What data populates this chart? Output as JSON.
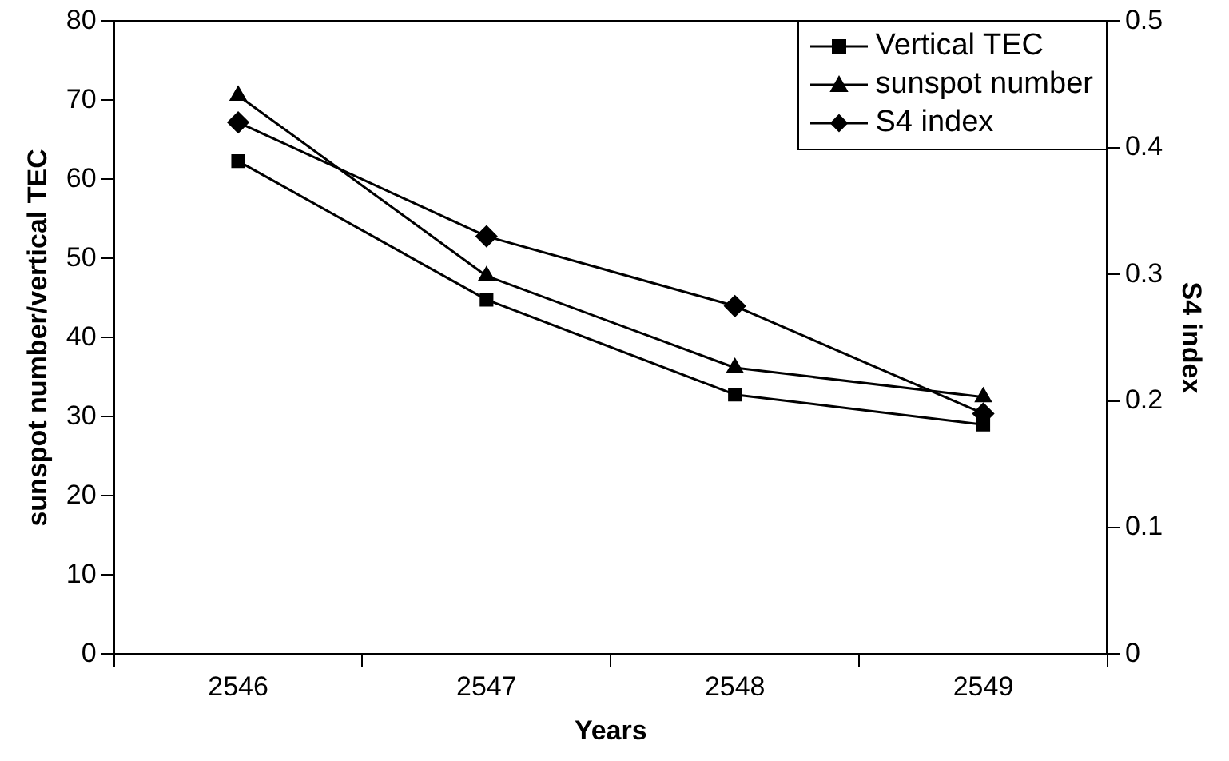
{
  "chart_data": {
    "type": "line",
    "xlabel": "Years",
    "ylabel": "sunspot number/vertical TEC",
    "y2label": "S4 index",
    "categories": [
      "2546",
      "2547",
      "2548",
      "2549"
    ],
    "series": [
      {
        "name": "Vertical TEC",
        "color": "#000000",
        "marker": "square",
        "values": [
          62.3,
          44.8,
          32.8,
          29
        ]
      },
      {
        "name": "sunspot number",
        "color": "#000000",
        "marker": "triangle",
        "values": [
          70.6,
          47.8,
          36.2,
          32.5
        ]
      },
      {
        "name": "S4 index",
        "color": "#000000",
        "marker": "diamond",
        "axis": "y2",
        "values": [
          0.42,
          0.33,
          0.275,
          0.19
        ]
      }
    ],
    "ylim": [
      0,
      80
    ],
    "yticks": [
      0,
      10,
      20,
      30,
      40,
      50,
      60,
      70,
      80
    ],
    "y2lim": [
      0,
      0.5
    ],
    "y2ticks": [
      0,
      0.1,
      0.2,
      0.3,
      0.4,
      0.5
    ],
    "grid": false,
    "legend": "top right",
    "line_style": "solid"
  }
}
